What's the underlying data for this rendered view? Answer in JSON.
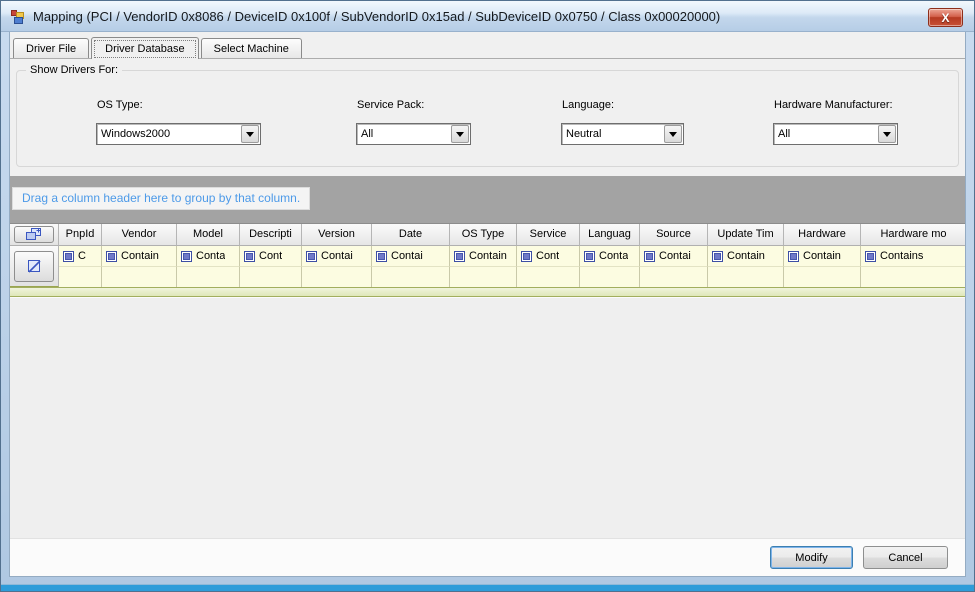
{
  "window": {
    "title": "Mapping (PCI / VendorID 0x8086 / DeviceID 0x100f / SubVendorID 0x15ad / SubDeviceID 0x0750 / Class 0x00020000)",
    "close_glyph": "X"
  },
  "tabs": [
    {
      "label": "Driver File",
      "active": false
    },
    {
      "label": "Driver Database",
      "active": true
    },
    {
      "label": "Select Machine",
      "active": false
    }
  ],
  "filter_panel": {
    "group_title": "Show Drivers For:",
    "fields": [
      {
        "label": "OS Type:",
        "value": "Windows2000"
      },
      {
        "label": "Service Pack:",
        "value": "All"
      },
      {
        "label": "Language:",
        "value": "Neutral"
      },
      {
        "label": "Hardware Manufacturer:",
        "value": "All"
      }
    ]
  },
  "grid": {
    "group_hint": "Drag a column header here to group by that column.",
    "columns": [
      {
        "header": "PnpId",
        "filter": "C"
      },
      {
        "header": "Vendor",
        "filter": "Contain"
      },
      {
        "header": "Model",
        "filter": "Conta"
      },
      {
        "header": "Descripti",
        "filter": "Cont"
      },
      {
        "header": "Version",
        "filter": "Contai"
      },
      {
        "header": "Date",
        "filter": "Contai"
      },
      {
        "header": "OS Type",
        "filter": "Contain"
      },
      {
        "header": "Service",
        "filter": "Cont"
      },
      {
        "header": "Languag",
        "filter": "Conta"
      },
      {
        "header": "Source",
        "filter": "Contai"
      },
      {
        "header": "Update Tim",
        "filter": "Contain"
      },
      {
        "header": "Hardware",
        "filter": "Contain"
      },
      {
        "header": "Hardware mo",
        "filter": "Contains"
      }
    ]
  },
  "footer": {
    "modify_label": "Modify",
    "cancel_label": "Cancel"
  },
  "colors": {
    "hint_text_blue": "#4D9AE8",
    "filter_row_yellow": "#FCFCE1",
    "close_button_red": "#B53A22",
    "default_button_border": "#3C7FB1",
    "titlebar_blue": "#C3D7EC"
  }
}
